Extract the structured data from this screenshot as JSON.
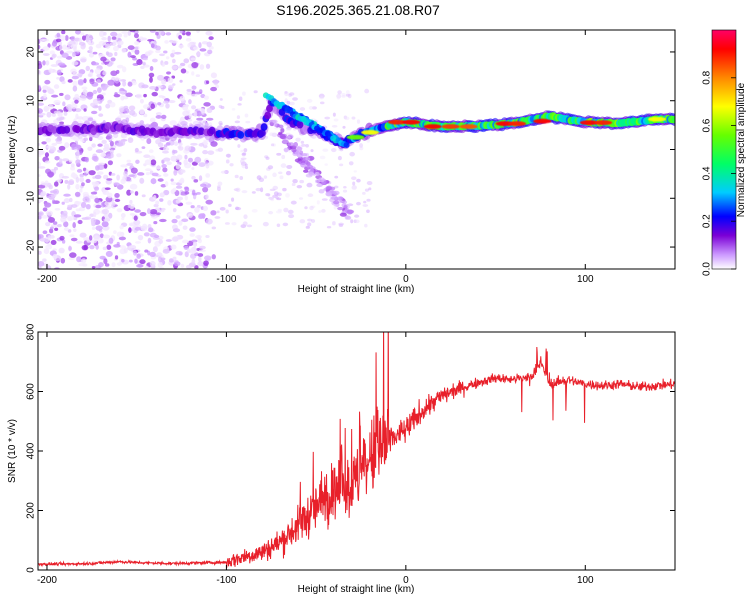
{
  "figure": {
    "title": "S196.2025.365.21.08.R07"
  },
  "chart_data": [
    {
      "type": "heatmap",
      "name": "spectrogram",
      "title": "",
      "xlabel": "Height of straight line (km)",
      "ylabel": "Frequency (Hz)",
      "xlim": [
        -205,
        150
      ],
      "ylim": [
        -24.5,
        24.5
      ],
      "xticks": [
        -200,
        -100,
        0,
        100
      ],
      "yticks": [
        -20,
        -10,
        0,
        10,
        20
      ],
      "colorbar": {
        "label": "Normalized spectral amplitude",
        "range": [
          0,
          1
        ],
        "ticks": [
          0.0,
          0.2,
          0.4,
          0.6,
          0.8
        ],
        "tick_labels": [
          "0.0",
          "0.2",
          "0.4",
          "0.6",
          "0.8"
        ],
        "colormap": [
          "#ffffff",
          "#cc99ff",
          "#7b00d6",
          "#0000ff",
          "#00ccff",
          "#00ff66",
          "#66ff00",
          "#ffff00",
          "#ff8800",
          "#ff0000",
          "#ff0066"
        ]
      },
      "ridge": [
        {
          "x": -180,
          "y": 4.0
        },
        {
          "x": -160,
          "y": 4.6
        },
        {
          "x": -140,
          "y": 3.4
        },
        {
          "x": -120,
          "y": 3.8
        },
        {
          "x": -100,
          "y": 3.4
        },
        {
          "x": -90,
          "y": 3.2
        },
        {
          "x": -80,
          "y": 3.4
        },
        {
          "x": -75,
          "y": 9.5
        },
        {
          "x": -65,
          "y": 6.0
        },
        {
          "x": -55,
          "y": 4.5
        },
        {
          "x": -45,
          "y": 3.0
        },
        {
          "x": -35,
          "y": 1.2
        },
        {
          "x": -25,
          "y": 3.2
        },
        {
          "x": -10,
          "y": 4.8
        },
        {
          "x": 0,
          "y": 5.6
        },
        {
          "x": 20,
          "y": 4.7
        },
        {
          "x": 40,
          "y": 4.8
        },
        {
          "x": 60,
          "y": 5.4
        },
        {
          "x": 80,
          "y": 6.8
        },
        {
          "x": 100,
          "y": 5.6
        },
        {
          "x": 120,
          "y": 5.4
        },
        {
          "x": 140,
          "y": 6.2
        }
      ]
    },
    {
      "type": "line",
      "name": "snr",
      "title": "",
      "xlabel": "Height of straight line (km)",
      "ylabel": "SNR (10 * v/v)",
      "xlim": [
        -205,
        150
      ],
      "ylim": [
        0,
        800
      ],
      "xticks": [
        -200,
        -100,
        0,
        100
      ],
      "yticks": [
        0,
        200,
        400,
        600,
        800
      ],
      "series": [
        {
          "name": "SNR",
          "color": "#e8202a",
          "x": [
            -205,
            -190,
            -175,
            -160,
            -145,
            -130,
            -115,
            -100,
            -90,
            -80,
            -70,
            -60,
            -50,
            -40,
            -30,
            -20,
            -10,
            0,
            10,
            20,
            30,
            40,
            50,
            60,
            70,
            75,
            80,
            90,
            100,
            110,
            120,
            130,
            140,
            150
          ],
          "y": [
            20,
            20,
            22,
            28,
            24,
            22,
            24,
            26,
            45,
            60,
            95,
            150,
            210,
            260,
            280,
            370,
            430,
            470,
            540,
            585,
            610,
            630,
            645,
            640,
            650,
            700,
            625,
            640,
            625,
            620,
            625,
            615,
            620,
            625
          ]
        }
      ]
    }
  ]
}
